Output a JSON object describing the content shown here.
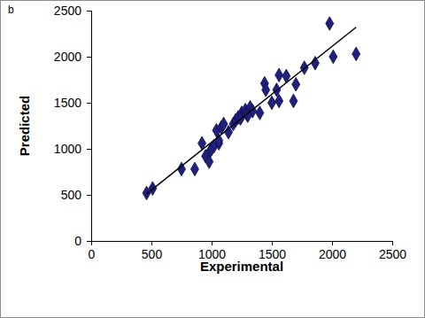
{
  "chart_data": {
    "type": "scatter",
    "title": "b",
    "x_label": "Experimental",
    "y_label": "Predicted",
    "xlim": [
      0,
      2500
    ],
    "xticks": [
      0,
      500,
      1000,
      1500,
      2000,
      2500
    ],
    "ylim": [
      0,
      2500
    ],
    "yticks": [
      0,
      500,
      1000,
      1500,
      2000,
      2500
    ],
    "grid": false,
    "series": [
      {
        "type": "scatter",
        "marker": "diamond",
        "color": "#20207f",
        "x": [
          460,
          510,
          750,
          860,
          920,
          950,
          980,
          990,
          1000,
          1020,
          1040,
          1060,
          1080,
          1100,
          1060,
          1140,
          1180,
          1200,
          1220,
          1250,
          1280,
          1290,
          1320,
          1340,
          1400,
          1440,
          1450,
          1500,
          1540,
          1560,
          1560,
          1620,
          1680,
          1700,
          1770,
          1860,
          1980,
          2010,
          2200,
          1300,
          1240
        ],
        "values": [
          520,
          570,
          780,
          780,
          1060,
          920,
          860,
          980,
          1000,
          1030,
          1200,
          1060,
          1230,
          1270,
          1090,
          1180,
          1270,
          1310,
          1340,
          1390,
          1420,
          1380,
          1450,
          1410,
          1390,
          1710,
          1640,
          1500,
          1640,
          1520,
          1800,
          1790,
          1520,
          1700,
          1880,
          1930,
          2360,
          2000,
          2030,
          1360,
          1330
        ]
      },
      {
        "type": "line",
        "line_style": "solid",
        "color": "#000000",
        "x": [
          460,
          2200
        ],
        "values": [
          510,
          2320
        ]
      }
    ]
  }
}
